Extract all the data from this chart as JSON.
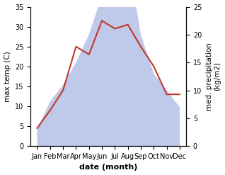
{
  "months": [
    "Jan",
    "Feb",
    "Mar",
    "Apr",
    "May",
    "Jun",
    "Jul",
    "Aug",
    "Sep",
    "Oct",
    "Nov",
    "Dec"
  ],
  "temperature": [
    4.5,
    9.0,
    14.0,
    25.0,
    23.0,
    31.5,
    29.5,
    30.5,
    25.0,
    20.0,
    13.0,
    13.0
  ],
  "precipitation": [
    3.0,
    8.0,
    11.0,
    15.0,
    20.0,
    27.0,
    34.0,
    34.0,
    20.0,
    13.0,
    10.0,
    7.0
  ],
  "temp_color": "#c0392b",
  "precip_color": "#b8c4e8",
  "ylabel_left": "max temp (C)",
  "ylabel_right": "med. precipitation\n(kg/m2)",
  "xlabel": "date (month)",
  "ylim_left": [
    0,
    35
  ],
  "ylim_right": [
    0,
    25
  ],
  "background_color": "#ffffff",
  "temp_linewidth": 1.5,
  "xlabel_fontsize": 8,
  "ylabel_fontsize": 7.5,
  "tick_fontsize": 7,
  "right_yticks": [
    0,
    5,
    10,
    15,
    20,
    25
  ],
  "left_yticks": [
    0,
    5,
    10,
    15,
    20,
    25,
    30,
    35
  ],
  "precip_scale_factor": 1.4
}
